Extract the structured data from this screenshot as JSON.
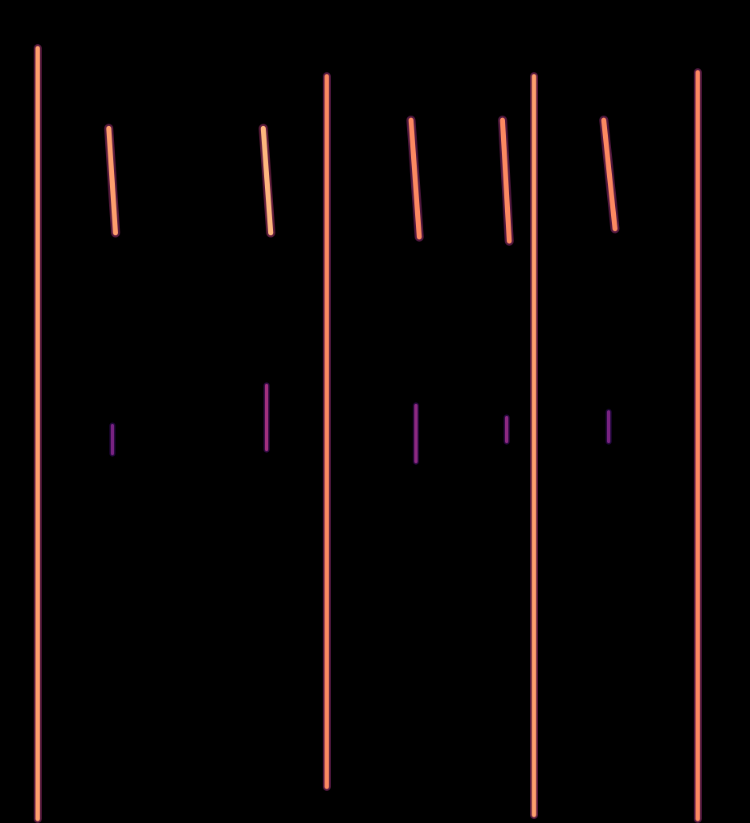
{
  "chart_data": {
    "type": "spectrogram",
    "xlim": [
      0,
      100
    ],
    "ylim": [
      0,
      100
    ],
    "xticks": [],
    "yticks": [],
    "tick_labels": false,
    "zlim": [
      0,
      1
    ],
    "events": [
      {
        "kind": "click",
        "t": [
          5.0,
          5.0
        ],
        "f": [
          0.5,
          94.1
        ],
        "level": 0.8
      },
      {
        "kind": "click",
        "t": [
          43.6,
          43.6
        ],
        "f": [
          4.4,
          90.7
        ],
        "level": 0.75
      },
      {
        "kind": "click",
        "t": [
          71.2,
          71.2
        ],
        "f": [
          1.0,
          90.7
        ],
        "level": 0.8
      },
      {
        "kind": "click",
        "t": [
          93.0,
          93.0
        ],
        "f": [
          0.5,
          91.2
        ],
        "level": 0.75
      },
      {
        "kind": "chirp",
        "t": [
          14.5,
          15.4
        ],
        "f": [
          84.4,
          71.7
        ],
        "level": 0.8
      },
      {
        "kind": "chirp",
        "t": [
          35.1,
          36.1
        ],
        "f": [
          84.4,
          71.7
        ],
        "level": 0.85
      },
      {
        "kind": "chirp",
        "t": [
          54.8,
          55.9
        ],
        "f": [
          85.4,
          71.2
        ],
        "level": 0.75
      },
      {
        "kind": "chirp",
        "t": [
          67.0,
          67.9
        ],
        "f": [
          85.4,
          70.7
        ],
        "level": 0.75
      },
      {
        "kind": "chirp",
        "t": [
          80.5,
          82.0
        ],
        "f": [
          85.4,
          72.2
        ],
        "level": 0.75
      },
      {
        "kind": "harmonic",
        "t": [
          15.0,
          15.0
        ],
        "f": [
          48.3,
          44.9
        ],
        "level": 0.35
      },
      {
        "kind": "harmonic",
        "t": [
          35.5,
          35.5
        ],
        "f": [
          53.2,
          45.4
        ],
        "level": 0.45
      },
      {
        "kind": "harmonic",
        "t": [
          55.5,
          55.5
        ],
        "f": [
          50.7,
          43.9
        ],
        "level": 0.4
      },
      {
        "kind": "harmonic",
        "t": [
          67.6,
          67.6
        ],
        "f": [
          49.3,
          46.3
        ],
        "level": 0.4
      },
      {
        "kind": "harmonic",
        "t": [
          81.2,
          81.2
        ],
        "f": [
          50.0,
          46.3
        ],
        "level": 0.35
      }
    ]
  }
}
